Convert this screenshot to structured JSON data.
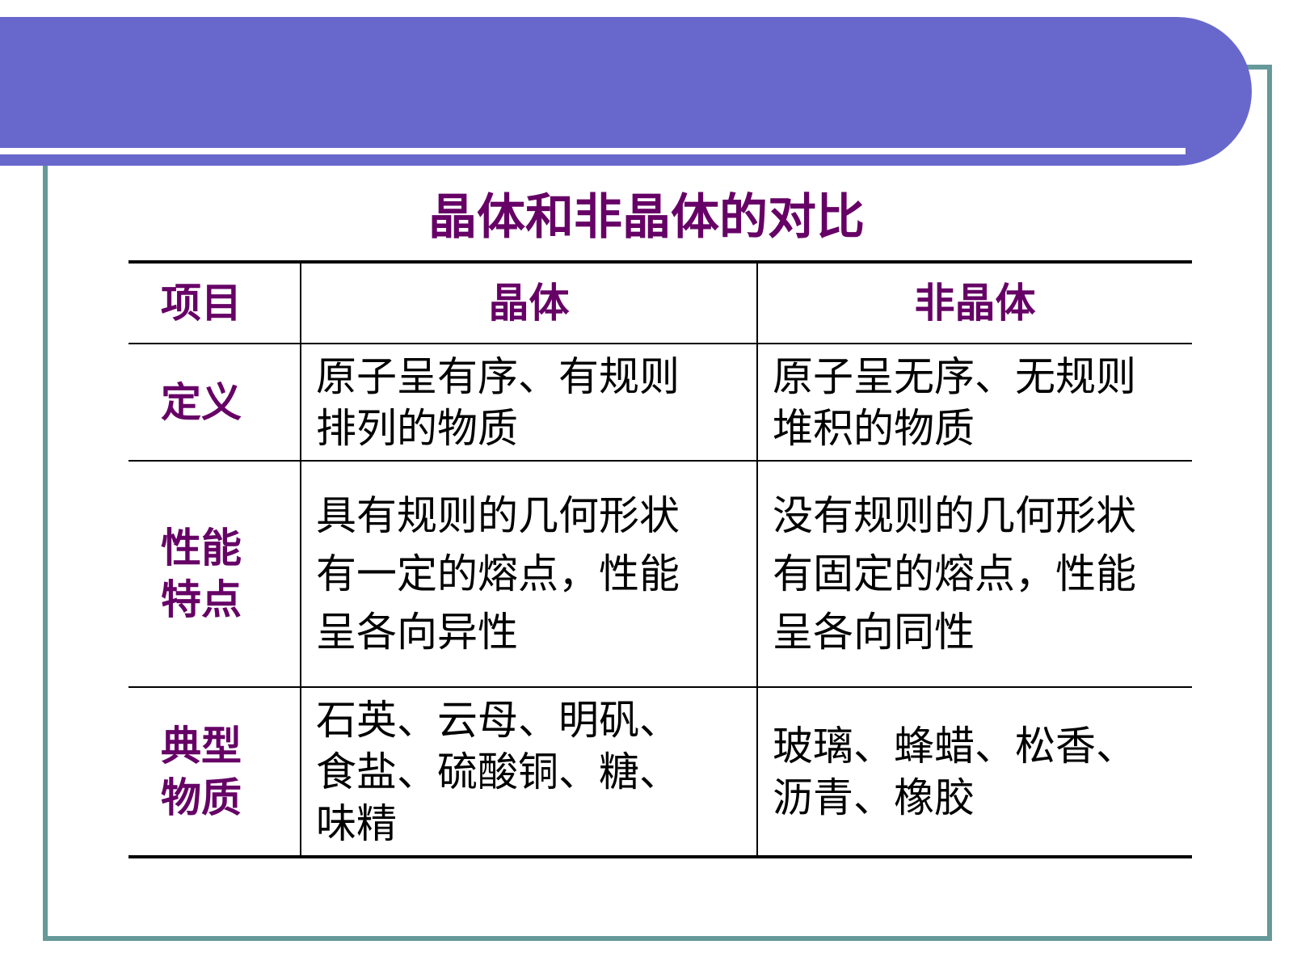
{
  "colors": {
    "banner": "#6868cc",
    "frame": "#669999",
    "title": "#660066",
    "header_text": "#660066"
  },
  "title": "晶体和非晶体的对比",
  "table": {
    "headers": [
      "项目",
      "晶体",
      "非晶体"
    ],
    "rows": [
      {
        "label": [
          "定义"
        ],
        "crystal": [
          "原子呈有序、有规则",
          "排列的物质"
        ],
        "amorphous": [
          "原子呈无序、无规则",
          "堆积的物质"
        ]
      },
      {
        "label": [
          "性能",
          "特点"
        ],
        "crystal": [
          "具有规则的几何形状",
          "有一定的熔点，性能",
          "呈各向异性"
        ],
        "amorphous": [
          "没有规则的几何形状",
          "有固定的熔点，性能",
          "呈各向同性"
        ]
      },
      {
        "label": [
          "典型",
          "物质"
        ],
        "crystal": [
          "石英、云母、明矾、",
          "食盐、硫酸铜、糖、",
          "味精"
        ],
        "amorphous": [
          "玻璃、蜂蜡、松香、",
          "沥青、橡胶"
        ]
      }
    ]
  }
}
